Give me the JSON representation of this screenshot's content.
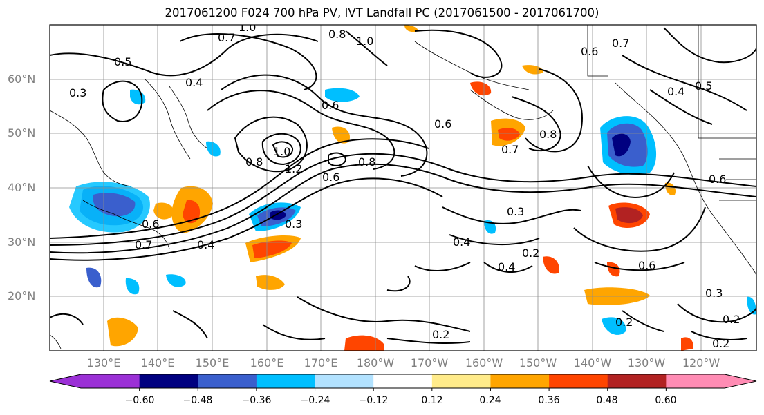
{
  "title": "2017061200 F024 700 hPa PV, IVT Landfall PC (2017061500 - 2017061700)",
  "latitude_labels": [
    "60°N",
    "50°N",
    "40°N",
    "30°N",
    "20°N"
  ],
  "longitude_labels": [
    "130°E",
    "140°E",
    "150°E",
    "160°E",
    "170°E",
    "180°W",
    "170°W",
    "160°W",
    "150°W",
    "140°W",
    "130°W",
    "120°W"
  ],
  "colorbar": {
    "tick_labels": [
      "−0.60",
      "−0.48",
      "−0.36",
      "−0.24",
      "−0.12",
      "0.12",
      "0.24",
      "0.36",
      "0.48",
      "0.60"
    ],
    "colors": [
      "#9b30d6",
      "#000080",
      "#3a5fcd",
      "#00bfff",
      "#b2e2ff",
      "#ffffff",
      "#ffeb8a",
      "#ffa500",
      "#ff4500",
      "#b22222",
      "#ff8cb4"
    ]
  },
  "contour_labels": [
    "1.0",
    "0.7",
    "0.8",
    "1.0",
    "0.6",
    "0.7",
    "0.5",
    "0.4",
    "0.3",
    "0.6",
    "0.6",
    "0.8",
    "0.7",
    "0.8",
    "1.0",
    "1.2",
    "0.6",
    "0.8",
    "0.4",
    "0.3",
    "0.6",
    "0.7",
    "0.4",
    "0.3",
    "0.4",
    "0.2",
    "0.6",
    "0.3",
    "0.2",
    "0.2",
    "0.6",
    "0.2",
    "0.2",
    "0.4",
    "0.5"
  ]
}
